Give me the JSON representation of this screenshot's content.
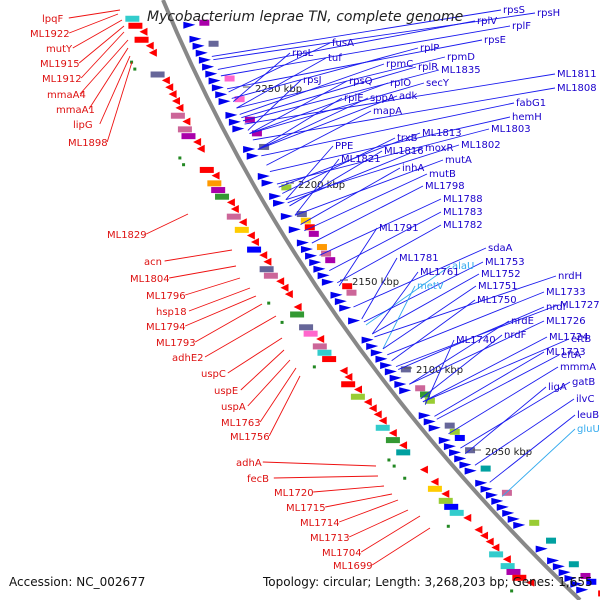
{
  "title": "Mycobacterium leprae TN, complete genome",
  "footer": {
    "accession": "Accession: NC_002677",
    "topology": "Topology: circular; Length: 3,268,203 bp; Genes: 1,655"
  },
  "colors": {
    "forward_label": "#1a00cc",
    "reverse_label": "#dd1111",
    "rna_label": "#33aaee",
    "backbone": "#888888"
  },
  "ticks": [
    "2250 kbp",
    "2200 kbp",
    "2150 kbp",
    "2100 kbp",
    "2050 kbp"
  ],
  "labels_left": [
    "lpqF",
    "ML1922",
    "mutY",
    "ML1915",
    "ML1912",
    "mmaA4",
    "mmaA1",
    "lipG",
    "ML1898",
    "ML1829",
    "acn",
    "ML1804",
    "ML1796",
    "hsp18",
    "ML1794",
    "ML1793",
    "adhE2",
    "uspC",
    "uspE",
    "uspA",
    "ML1763",
    "ML1756",
    "adhA",
    "fecB",
    "ML1720",
    "ML1715",
    "ML1714",
    "ML1713",
    "ML1704",
    "ML1699"
  ],
  "labels_right": [
    "rpsS",
    "rpsH",
    "rplV",
    "rplF",
    "rpsE",
    "fusA",
    "rpsL",
    "tuf",
    "rplP",
    "rpmD",
    "rpmC",
    "rplR",
    "ML1835",
    "rpsJ",
    "rpsQ",
    "rplO",
    "secY",
    "ML1811",
    "ML1808",
    "rplE",
    "sppA",
    "adk",
    "fabG1",
    "mapA",
    "hemH",
    "ML1803",
    "PPE",
    "trxB",
    "ML1813",
    "ML1802",
    "ML1821",
    "ML1816",
    "moxR",
    "mutA",
    "inhA",
    "mutB",
    "ML1798",
    "ML1788",
    "ML1783",
    "ML1782",
    "ML1791",
    "sdaA",
    "ML1781",
    "alaU",
    "ML1753",
    "ML1761",
    "ML1752",
    "metV",
    "ML1751",
    "ML1750",
    "nrdH",
    "ML1733",
    "nrdI",
    "ML1727",
    "nrdE",
    "ML1726",
    "ML1740",
    "nrdF",
    "ML1724",
    "eftB",
    "ML1723",
    "eftA",
    "mmmA",
    "gatB",
    "ligA",
    "ilvC",
    "leuB",
    "gluU"
  ]
}
